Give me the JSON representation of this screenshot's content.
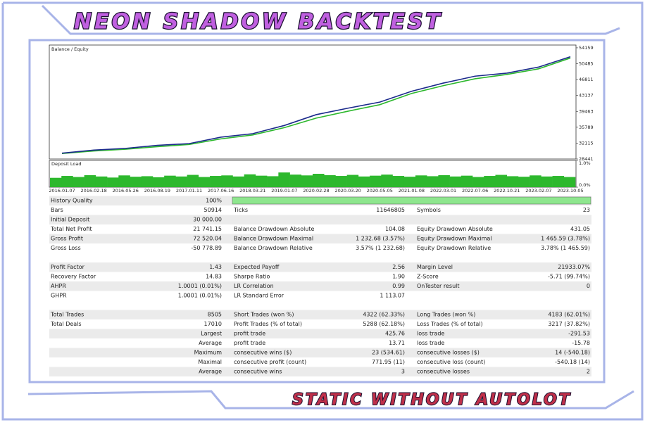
{
  "header": {
    "title": "NEON SHADOW BACKTEST"
  },
  "chart": {
    "legend_separator": "/",
    "series": [
      {
        "name": "Balance",
        "color": "#1b2a8c",
        "values": [
          29800,
          30500,
          30900,
          31600,
          32000,
          33500,
          34300,
          36200,
          38700,
          40200,
          41600,
          44100,
          46000,
          47600,
          48300,
          49700,
          52100
        ]
      },
      {
        "name": "Equity",
        "color": "#2db82d",
        "values": [
          29700,
          30300,
          30700,
          31300,
          31800,
          33100,
          34000,
          35700,
          37900,
          39500,
          41000,
          43600,
          45400,
          47000,
          48000,
          49300,
          51800
        ]
      }
    ],
    "categories": [
      "2016.01.07",
      "2016.02.18",
      "2016.05.26",
      "2016.08.19",
      "2017.01.11",
      "2017.06.16",
      "2018.03.21",
      "2019.01.07",
      "2020.02.28",
      "2020.03.20",
      "2020.05.05",
      "2021.01.08",
      "2022.03.01",
      "2022.07.06",
      "2022.10.21",
      "2023.02.07",
      "2023.10.05"
    ],
    "ylim": [
      28441,
      54800
    ],
    "yticks": [
      28441,
      32115,
      35789,
      39463,
      43137,
      46811,
      50485,
      54159
    ],
    "load": {
      "title": "Deposit Load",
      "color": "#2db82d",
      "ylim": [
        0,
        1
      ],
      "yticks": [
        {
          "value": 0,
          "label": "0.0%"
        },
        {
          "value": 1,
          "label": "1.0%"
        }
      ],
      "values": [
        0.35,
        0.42,
        0.38,
        0.45,
        0.4,
        0.36,
        0.44,
        0.39,
        0.41,
        0.37,
        0.43,
        0.4,
        0.46,
        0.38,
        0.42,
        0.44,
        0.4,
        0.48,
        0.43,
        0.41,
        0.55,
        0.47,
        0.44,
        0.5,
        0.45,
        0.42,
        0.46,
        0.4,
        0.43,
        0.47,
        0.42,
        0.39,
        0.44,
        0.41,
        0.45,
        0.4,
        0.43,
        0.38,
        0.42,
        0.46,
        0.41,
        0.39,
        0.44,
        0.4,
        0.42,
        0.38
      ]
    }
  },
  "table": {
    "sections": [
      [
        {
          "left": [
            "History Quality",
            "100%"
          ]
        },
        {
          "left": [
            "Bars",
            "50914"
          ],
          "middle": [
            "Ticks",
            "11646805"
          ],
          "right": [
            "Symbols",
            "23"
          ]
        },
        {
          "left": [
            "Initial Deposit",
            "30 000.00"
          ]
        },
        {
          "left": [
            "Total Net Profit",
            "21 741.15"
          ],
          "middle": [
            "Balance Drawdown Absolute",
            "104.08"
          ],
          "right": [
            "Equity Drawdown Absolute",
            "431.05"
          ]
        },
        {
          "left": [
            "Gross Profit",
            "72 520.04"
          ],
          "middle": [
            "Balance Drawdown Maximal",
            "1 232.68 (3.57%)"
          ],
          "right": [
            "Equity Drawdown Maximal",
            "1 465.59 (3.78%)"
          ]
        },
        {
          "left": [
            "Gross Loss",
            "-50 778.89"
          ],
          "middle": [
            "Balance Drawdown Relative",
            "3.57% (1 232.68)"
          ],
          "right": [
            "Equity Drawdown Relative",
            "3.78% (1 465.59)"
          ]
        }
      ],
      [
        {
          "left": [
            "Profit Factor",
            "1.43"
          ],
          "middle": [
            "Expected Payoff",
            "2.56"
          ],
          "right": [
            "Margin Level",
            "21933.07%"
          ]
        },
        {
          "left": [
            "Recovery Factor",
            "14.83"
          ],
          "middle": [
            "Sharpe Ratio",
            "1.90"
          ],
          "right": [
            "Z-Score",
            "-5.71 (99.74%)"
          ]
        },
        {
          "left": [
            "AHPR",
            "1.0001 (0.01%)"
          ],
          "middle": [
            "LR Correlation",
            "0.99"
          ],
          "right": [
            "OnTester result",
            "0"
          ]
        },
        {
          "left": [
            "GHPR",
            "1.0001 (0.01%)"
          ],
          "middle": [
            "LR Standard Error",
            "1 113.07"
          ]
        }
      ],
      [
        {
          "left": [
            "Total Trades",
            "8505"
          ],
          "middle": [
            "Short Trades (won %)",
            "4322 (62.33%)"
          ],
          "right": [
            "Long Trades (won %)",
            "4183 (62.01%)"
          ]
        },
        {
          "left": [
            "Total Deals",
            "17010"
          ],
          "middle": [
            "Profit Trades (% of total)",
            "5288 (62.18%)"
          ],
          "right": [
            "Loss Trades (% of total)",
            "3217 (37.82%)"
          ]
        },
        {
          "left": [
            "Largest"
          ],
          "middle": [
            "profit trade",
            "425.76"
          ],
          "right": [
            "loss trade",
            "-291.53"
          ]
        },
        {
          "left": [
            "Average"
          ],
          "middle": [
            "profit trade",
            "13.71"
          ],
          "right": [
            "loss trade",
            "-15.78"
          ]
        },
        {
          "left": [
            "Maximum"
          ],
          "middle": [
            "consecutive wins ($)",
            "23 (534.61)"
          ],
          "right": [
            "consecutive losses ($)",
            "14 (-540.18)"
          ]
        },
        {
          "left": [
            "Maximal"
          ],
          "middle": [
            "consecutive profit (count)",
            "771.95 (11)"
          ],
          "right": [
            "consecutive loss (count)",
            "-540.18 (14)"
          ]
        },
        {
          "left": [
            "Average"
          ],
          "middle": [
            "consecutive wins",
            "3"
          ],
          "right": [
            "consecutive losses",
            "2"
          ]
        }
      ]
    ]
  },
  "footer": {
    "caption": "STATIC WITHOUT AUTOLOT"
  }
}
